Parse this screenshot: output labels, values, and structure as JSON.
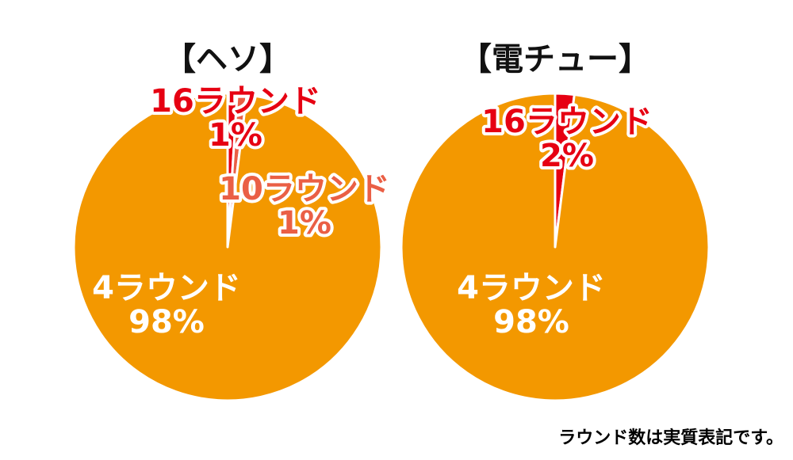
{
  "chart_data": [
    {
      "type": "pie",
      "title": "【ヘソ】",
      "slices": [
        {
          "label": "16ラウンド",
          "value_text": "1%",
          "value": 1,
          "color": "#e60012"
        },
        {
          "label": "10ラウンド",
          "value_text": "1%",
          "value": 1,
          "color": "#ea5f45"
        },
        {
          "label": "4ラウンド",
          "value_text": "98%",
          "value": 98,
          "color": "#f39800"
        }
      ]
    },
    {
      "type": "pie",
      "title": "【電チュー】",
      "slices": [
        {
          "label": "16ラウンド",
          "value_text": "2%",
          "value": 2,
          "color": "#e60012"
        },
        {
          "label": "4ラウンド",
          "value_text": "98%",
          "value": 98,
          "color": "#f39800"
        }
      ]
    }
  ],
  "footnote": "ラウンド数は実質表記です。"
}
